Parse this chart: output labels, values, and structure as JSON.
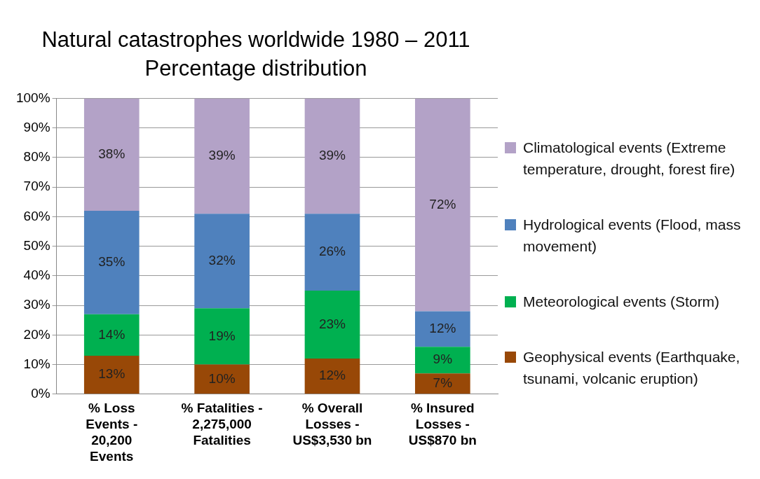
{
  "chart_data": {
    "type": "bar",
    "stacked": true,
    "title": "Natural catastrophes worldwide 1980 – 2011",
    "subtitle": "Percentage distribution",
    "categories": [
      "% Loss Events - 20,200 Events",
      "% Fatalities - 2,275,000 Fatalities",
      "% Overall Losses - US$3,530 bn",
      "% Insured Losses - US$870 bn"
    ],
    "series": [
      {
        "name": "Geophysical events (Earthquake, tsunami, volcanic eruption)",
        "color": "#984807",
        "values": [
          13,
          10,
          12,
          7
        ],
        "value_labels": [
          "13%",
          "10%",
          "12%",
          "7%"
        ]
      },
      {
        "name": "Meteorological events (Storm)",
        "color": "#00b050",
        "values": [
          14,
          19,
          23,
          9
        ],
        "value_labels": [
          "14%",
          "19%",
          "23%",
          "9%"
        ]
      },
      {
        "name": "Hydrological events (Flood, mass movement)",
        "color": "#4f81bd",
        "values": [
          35,
          32,
          26,
          12
        ],
        "value_labels": [
          "35%",
          "32%",
          "26%",
          "12%"
        ]
      },
      {
        "name": "Climatological events (Extreme temperature, drought, forest fire)",
        "color": "#b3a2c7",
        "values": [
          38,
          39,
          39,
          72
        ],
        "value_labels": [
          "38%",
          "39%",
          "39%",
          "72%"
        ]
      }
    ],
    "ylim": [
      0,
      100
    ],
    "yticks": [
      {
        "value": 0,
        "label": "0%"
      },
      {
        "value": 10,
        "label": "10%"
      },
      {
        "value": 20,
        "label": "20%"
      },
      {
        "value": 30,
        "label": "30%"
      },
      {
        "value": 40,
        "label": "40%"
      },
      {
        "value": 50,
        "label": "50%"
      },
      {
        "value": 60,
        "label": "60%"
      },
      {
        "value": 70,
        "label": "70%"
      },
      {
        "value": 80,
        "label": "80%"
      },
      {
        "value": 90,
        "label": "90%"
      },
      {
        "value": 100,
        "label": "100%"
      }
    ],
    "grid": "y",
    "legend": "right"
  }
}
